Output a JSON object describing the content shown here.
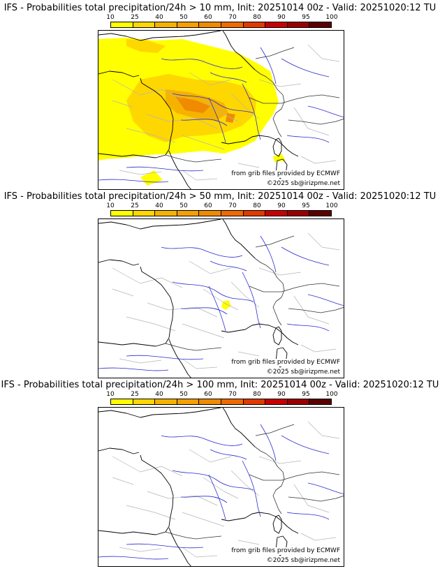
{
  "legend": {
    "ticks": [
      "10",
      "25",
      "40",
      "50",
      "60",
      "70",
      "80",
      "90",
      "95",
      "100"
    ],
    "colors": [
      "#ffff00",
      "#ffd700",
      "#f5b300",
      "#f5a000",
      "#f08a00",
      "#f06a00",
      "#e03a00",
      "#c80000",
      "#9a0000",
      "#5a0000"
    ]
  },
  "panels": [
    {
      "title": "IFS - Probabilities total precipitation/24h > 10 mm, Init: 20251014 00z - Valid: 20251020:12 TU",
      "credit_source": "from grib files provided by ECMWF",
      "credit_copyright": "©2025 sb@irizpme.net",
      "shading": "high"
    },
    {
      "title": "IFS - Probabilities total precipitation/24h > 50 mm, Init: 20251014 00z - Valid: 20251020:12 TU",
      "credit_source": "from grib files provided by ECMWF",
      "credit_copyright": "©2025 sb@irizpme.net",
      "shading": "small"
    },
    {
      "title": "IFS - Probabilities total precipitation/24h > 100 mm, Init: 20251014 00z - Valid: 20251020:12 TU",
      "credit_source": "from grib files provided by ECMWF",
      "credit_copyright": "©2025 sb@irizpme.net",
      "shading": "none"
    }
  ]
}
